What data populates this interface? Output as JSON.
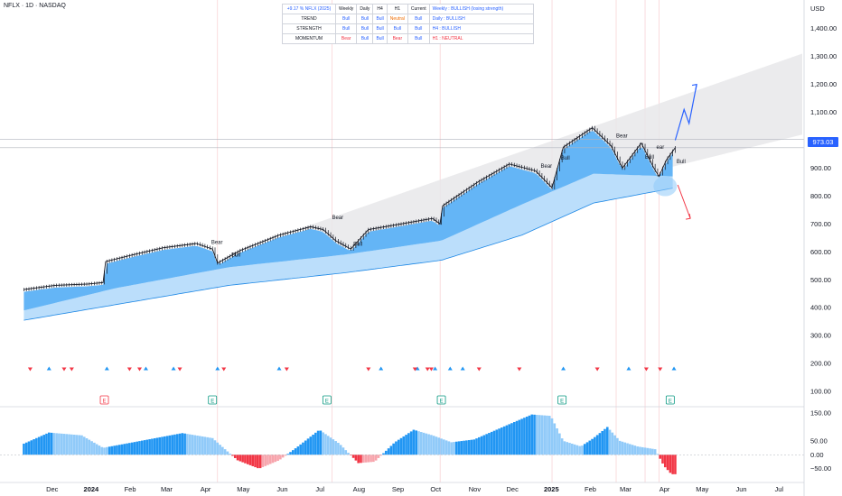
{
  "header": {
    "symbol_line": "NFLX · 1D · NASDAQ"
  },
  "currency": "USD",
  "current_price": "973.03",
  "signal_table": {
    "headers": [
      "+9.17 % NFLX (2025)",
      "Weekly",
      "Daily",
      "H4",
      "H1",
      "Current",
      "Weekly : BULLISH (losing strength)"
    ],
    "rows": [
      {
        "label": "TREND",
        "cells": [
          "Bull",
          "Bull",
          "Bull",
          "Neutral",
          "Bull"
        ],
        "note": "Daily : BULLISH"
      },
      {
        "label": "STRENGTH",
        "cells": [
          "Bull",
          "Bull",
          "Bull",
          "Bull",
          "Bull"
        ],
        "note": "H4 : BULLISH"
      },
      {
        "label": "MOMENTUM",
        "cells": [
          "Bear",
          "Bull",
          "Bull",
          "Bear",
          "Bull"
        ],
        "note": "H1 : NEUTRAL"
      }
    ]
  },
  "chart_data": [
    {
      "type": "line",
      "series_label": "NFLX daily",
      "y_ticks": [
        "1,400.00",
        "1,300.00",
        "1,200.00",
        "1,100.00",
        "1,000.00",
        "900.00",
        "800.00",
        "700.00",
        "600.00",
        "500.00",
        "400.00",
        "300.00",
        "200.00",
        "100.00"
      ],
      "y_tick_values": [
        1400,
        1300,
        1200,
        1100,
        1000,
        900,
        800,
        700,
        600,
        500,
        400,
        300,
        200,
        100
      ],
      "ylim": [
        55,
        1470
      ],
      "x_ticks": [
        "Dec",
        "2024",
        "Feb",
        "Mar",
        "Apr",
        "May",
        "Jun",
        "Jul",
        "Aug",
        "Sep",
        "Oct",
        "Nov",
        "Dec",
        "2025",
        "Feb",
        "Mar",
        "Apr",
        "May",
        "Jun",
        "Jul"
      ],
      "x_tick_dates": [
        "2023-12-01",
        "2024-01-01",
        "2024-02-01",
        "2024-03-01",
        "2024-04-01",
        "2024-05-01",
        "2024-06-01",
        "2024-07-01",
        "2024-08-01",
        "2024-09-01",
        "2024-10-01",
        "2024-11-01",
        "2024-12-01",
        "2025-01-01",
        "2025-02-01",
        "2025-03-01",
        "2025-04-01",
        "2025-05-01",
        "2025-06-01",
        "2025-07-01"
      ],
      "close_points": [
        [
          "2023-11-20",
          465
        ],
        [
          "2023-12-15",
          480
        ],
        [
          "2024-01-10",
          485
        ],
        [
          "2024-01-22",
          490
        ],
        [
          "2024-01-24",
          565
        ],
        [
          "2024-02-15",
          590
        ],
        [
          "2024-03-10",
          615
        ],
        [
          "2024-04-05",
          630
        ],
        [
          "2024-04-18",
          610
        ],
        [
          "2024-04-22",
          560
        ],
        [
          "2024-05-10",
          605
        ],
        [
          "2024-06-10",
          660
        ],
        [
          "2024-07-05",
          690
        ],
        [
          "2024-07-15",
          680
        ],
        [
          "2024-07-25",
          640
        ],
        [
          "2024-08-06",
          610
        ],
        [
          "2024-08-20",
          680
        ],
        [
          "2024-09-15",
          700
        ],
        [
          "2024-10-10",
          720
        ],
        [
          "2024-10-16",
          700
        ],
        [
          "2024-10-18",
          765
        ],
        [
          "2024-11-15",
          850
        ],
        [
          "2024-12-10",
          915
        ],
        [
          "2024-12-31",
          890
        ],
        [
          "2025-01-13",
          830
        ],
        [
          "2025-01-22",
          975
        ],
        [
          "2025-02-14",
          1045
        ],
        [
          "2025-03-01",
          980
        ],
        [
          "2025-03-10",
          900
        ],
        [
          "2025-03-25",
          990
        ],
        [
          "2025-04-04",
          900
        ],
        [
          "2025-04-08",
          870
        ],
        [
          "2025-04-14",
          930
        ],
        [
          "2025-04-21",
          973
        ]
      ],
      "band_upper": [
        [
          "2023-11-20",
          430
        ],
        [
          "2024-01-20",
          460
        ],
        [
          "2024-01-25",
          520
        ],
        [
          "2024-04-15",
          600
        ],
        [
          "2024-05-01",
          590
        ],
        [
          "2024-07-15",
          660
        ],
        [
          "2024-08-10",
          650
        ],
        [
          "2024-10-17",
          700
        ],
        [
          "2024-12-15",
          880
        ],
        [
          "2025-01-10",
          850
        ],
        [
          "2025-02-15",
          1010
        ],
        [
          "2025-03-10",
          930
        ],
        [
          "2025-04-10",
          890
        ],
        [
          "2025-04-21",
          930
        ]
      ],
      "band_mid": [
        [
          "2023-11-20",
          390
        ],
        [
          "2024-02-01",
          470
        ],
        [
          "2024-05-01",
          545
        ],
        [
          "2024-08-01",
          590
        ],
        [
          "2024-10-17",
          640
        ],
        [
          "2024-12-20",
          770
        ],
        [
          "2025-02-15",
          880
        ],
        [
          "2025-04-21",
          870
        ]
      ],
      "band_lower": [
        [
          "2023-11-20",
          355
        ],
        [
          "2024-05-01",
          480
        ],
        [
          "2024-08-01",
          525
        ],
        [
          "2024-10-17",
          570
        ],
        [
          "2024-12-20",
          660
        ],
        [
          "2025-02-15",
          775
        ],
        [
          "2025-04-21",
          830
        ]
      ],
      "channel": {
        "start": [
          "2024-07-01",
          690
        ],
        "end_upper": [
          "2025-07-31",
          1310
        ],
        "end_lower": [
          "2025-07-31",
          1020
        ]
      },
      "hlines": [
        1003,
        973
      ],
      "projection_up": [
        [
          "2025-04-21",
          1000
        ],
        [
          "2025-04-28",
          1110
        ],
        [
          "2025-05-02",
          1060
        ],
        [
          "2025-05-08",
          1200
        ]
      ],
      "projection_down": [
        [
          "2025-04-23",
          840
        ],
        [
          "2025-05-03",
          720
        ]
      ],
      "annotations": [
        {
          "text": "Bear",
          "date": "2024-04-17",
          "value": 628
        },
        {
          "text": "Bull",
          "date": "2024-05-03",
          "value": 583
        },
        {
          "text": "Bear",
          "date": "2024-07-22",
          "value": 718
        },
        {
          "text": "Bull",
          "date": "2024-08-08",
          "value": 622
        },
        {
          "text": "Bear",
          "date": "2025-01-04",
          "value": 901
        },
        {
          "text": "Bull",
          "date": "2025-01-20",
          "value": 930
        },
        {
          "text": "Bear",
          "date": "2025-03-05",
          "value": 1009
        },
        {
          "text": "Bull",
          "date": "2025-03-28",
          "value": 934
        },
        {
          "text": "ear",
          "date": "2025-04-06",
          "value": 969
        },
        {
          "text": "Bull",
          "date": "2025-04-22",
          "value": 918
        }
      ],
      "signal_markers_up": [
        "2023-12-10",
        "2024-01-25",
        "2024-02-25",
        "2024-03-18",
        "2024-04-22",
        "2024-06-10",
        "2024-08-30",
        "2024-09-28",
        "2024-10-12",
        "2024-10-24",
        "2024-11-03",
        "2025-01-22",
        "2025-03-15",
        "2025-04-20"
      ],
      "signal_markers_down": [
        "2023-11-25",
        "2023-12-22",
        "2023-12-28",
        "2024-02-12",
        "2024-02-20",
        "2024-03-23",
        "2024-04-27",
        "2024-06-16",
        "2024-08-20",
        "2024-09-26",
        "2024-10-06",
        "2024-10-09",
        "2024-11-16",
        "2024-12-18",
        "2025-02-18",
        "2025-03-29",
        "2025-04-09"
      ],
      "earnings_markers": [
        {
          "date": "2024-01-23",
          "kind": "bear"
        },
        {
          "date": "2024-04-18",
          "kind": "bull"
        },
        {
          "date": "2024-07-18",
          "kind": "bull"
        },
        {
          "date": "2024-10-17",
          "kind": "bull"
        },
        {
          "date": "2025-01-21",
          "kind": "bull"
        },
        {
          "date": "2025-04-17",
          "kind": "bull"
        }
      ],
      "marker_label": "E",
      "vlines": [
        "2024-04-22",
        "2024-07-22",
        "2024-10-16",
        "2025-01-13",
        "2025-03-05",
        "2025-03-28",
        "2025-04-08"
      ]
    },
    {
      "type": "area",
      "series_label": "Momentum oscillator",
      "y_ticks": [
        "150.00",
        "50.00",
        "0.00",
        "−50.00"
      ],
      "y_tick_values": [
        150,
        50,
        0,
        -50
      ],
      "ylim": [
        -90,
        160
      ],
      "points": [
        [
          "2023-11-20",
          40
        ],
        [
          "2023-12-10",
          80
        ],
        [
          "2024-01-05",
          70
        ],
        [
          "2024-01-22",
          25
        ],
        [
          "2024-02-15",
          45
        ],
        [
          "2024-03-25",
          78
        ],
        [
          "2024-04-18",
          60
        ],
        [
          "2024-05-08",
          -20
        ],
        [
          "2024-05-25",
          -50
        ],
        [
          "2024-06-10",
          -20
        ],
        [
          "2024-06-25",
          30
        ],
        [
          "2024-07-12",
          90
        ],
        [
          "2024-07-28",
          40
        ],
        [
          "2024-08-12",
          -30
        ],
        [
          "2024-08-25",
          -25
        ],
        [
          "2024-09-10",
          45
        ],
        [
          "2024-09-25",
          90
        ],
        [
          "2024-10-10",
          70
        ],
        [
          "2024-10-25",
          45
        ],
        [
          "2024-11-12",
          55
        ],
        [
          "2024-12-10",
          110
        ],
        [
          "2024-12-28",
          145
        ],
        [
          "2025-01-12",
          140
        ],
        [
          "2025-01-22",
          50
        ],
        [
          "2025-02-05",
          30
        ],
        [
          "2025-02-15",
          60
        ],
        [
          "2025-02-26",
          100
        ],
        [
          "2025-03-08",
          50
        ],
        [
          "2025-03-22",
          30
        ],
        [
          "2025-04-05",
          20
        ],
        [
          "2025-04-12",
          -40
        ],
        [
          "2025-04-18",
          -70
        ],
        [
          "2025-04-22",
          -70
        ]
      ]
    }
  ]
}
